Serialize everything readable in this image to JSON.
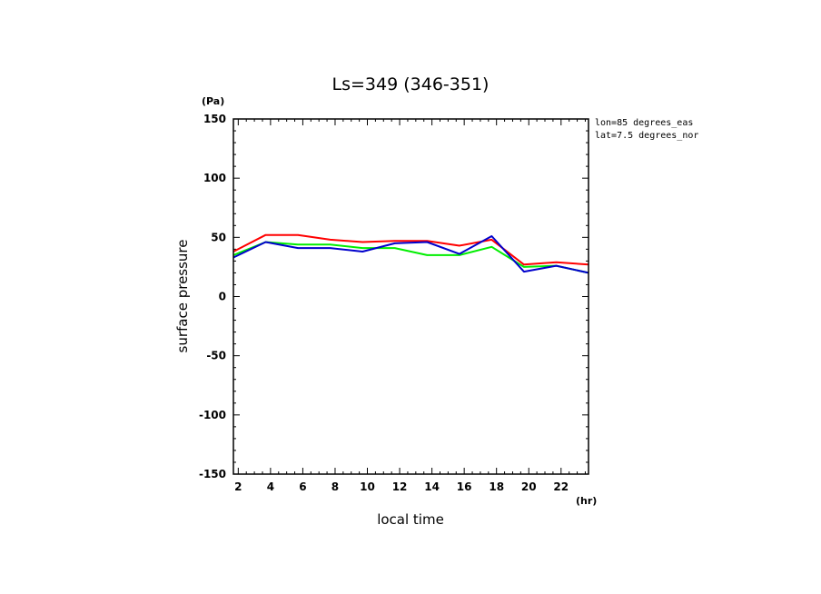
{
  "chart_data": {
    "type": "line",
    "title": "Ls=349 (346-351)",
    "xlabel": "local time",
    "ylabel": "surface pressure",
    "x_unit": "(hr)",
    "y_unit": "(Pa)",
    "xlim": [
      1.7,
      23.7
    ],
    "ylim": [
      -150,
      150
    ],
    "x_ticks": [
      2,
      4,
      6,
      8,
      10,
      12,
      14,
      16,
      18,
      20,
      22
    ],
    "y_ticks": [
      -150,
      -100,
      -50,
      0,
      50,
      100,
      150
    ],
    "annotations": [
      "lon=85 degrees_eas",
      "lat=7.5 degrees_nor"
    ],
    "grid": false,
    "x": [
      1.7,
      3.7,
      5.7,
      7.7,
      9.7,
      11.7,
      13.7,
      15.7,
      17.7,
      19.7,
      21.7,
      23.7
    ],
    "series": [
      {
        "color": "#ff0000",
        "values": [
          38,
          52,
          52,
          48,
          46,
          47,
          47,
          43,
          48,
          27,
          29,
          27
        ]
      },
      {
        "color": "#00ee00",
        "values": [
          35,
          46,
          44,
          44,
          41,
          41,
          35,
          35,
          42,
          25,
          26,
          20
        ]
      },
      {
        "color": "#0000cc",
        "values": [
          33,
          46,
          41,
          41,
          38,
          45,
          46,
          36,
          51,
          21,
          26,
          20
        ]
      }
    ]
  }
}
